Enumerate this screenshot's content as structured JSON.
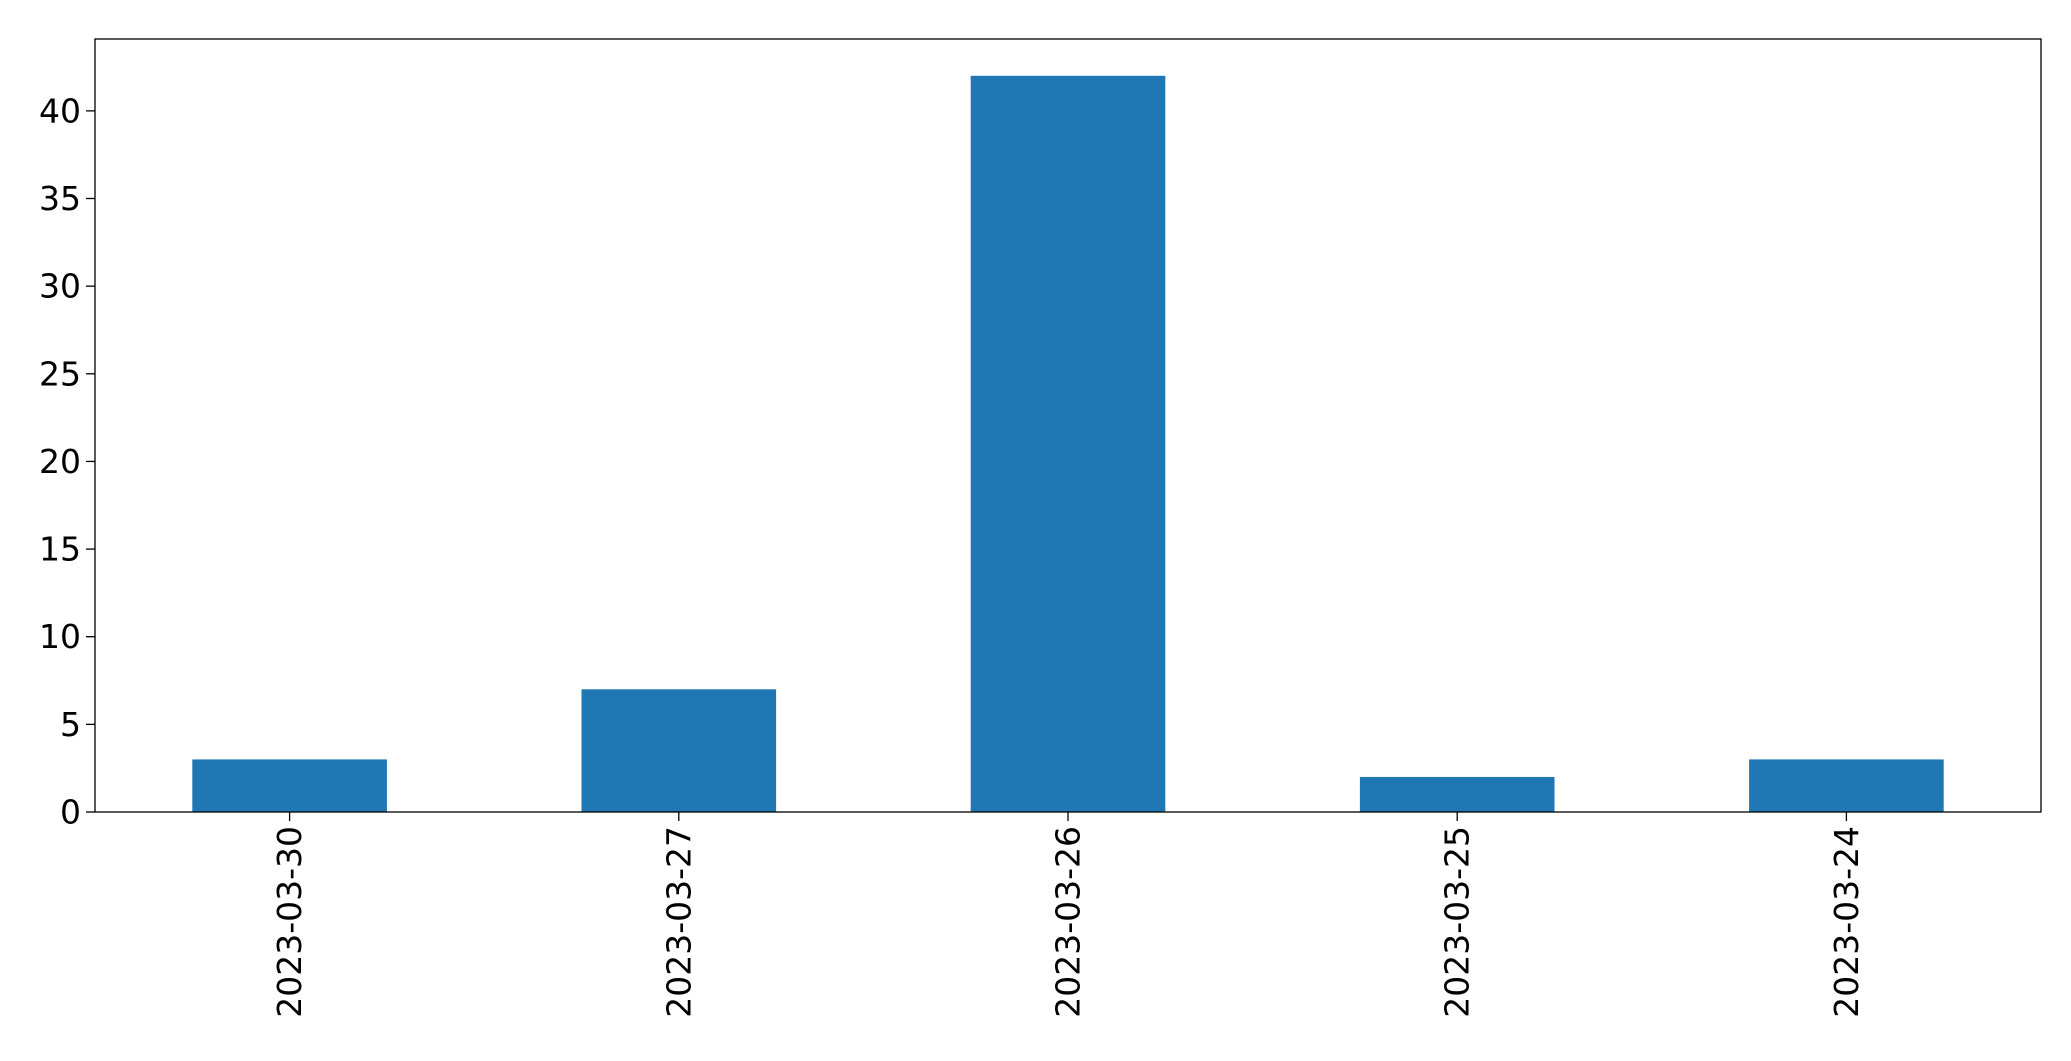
{
  "chart_data": {
    "type": "bar",
    "categories": [
      "2023-03-30",
      "2023-03-27",
      "2023-03-26",
      "2023-03-25",
      "2023-03-24"
    ],
    "values": [
      3,
      7,
      42,
      2,
      3
    ],
    "title": "",
    "xlabel": "",
    "ylabel": "",
    "ylim": [
      0,
      44.1
    ],
    "yticks": [
      0,
      5,
      10,
      15,
      20,
      25,
      30,
      35,
      40
    ],
    "grid": false,
    "legend": "none",
    "bar_color": "#1f77b4"
  }
}
